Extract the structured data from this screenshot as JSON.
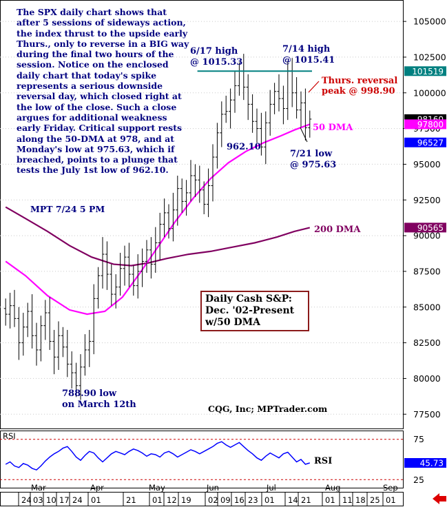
{
  "commentary": "The SPX daily chart shows that after 5 sessions of sideways action, the index thrust to the upside early Thurs., only to reverse in a BIG way during the final two hours of the session. Notice on the enclosed daily chart that today's spike represents a serious downside reversal day, which closed right at the low of the close. Such a close argues for additional weakness early Friday. Critical support rests along the 50-DMA at 978, and at Monday's low at 975.63, which if breached, points to a plunge that tests the July 1st low of 962.10.",
  "signature": "MPT  7/24  5 PM",
  "box": {
    "line1": "Daily Cash S&P:",
    "line2": "Dec. '02-Present",
    "line3": "w/50 DMA"
  },
  "credit": "CQG, Inc; MPTrader.com",
  "colors": {
    "price": "#000000",
    "dma50": "#ff00ff",
    "dma200": "#800060",
    "resistance": "#008080",
    "annotation": "#000080",
    "reversal": "#cc0000",
    "rsi": "#0000ff",
    "rsi_band": "#cc0000",
    "boxborder": "#8b1a1a",
    "tag_dark": "#000000",
    "tag_blue": "#0000ff",
    "tag_teal": "#008080",
    "tag_purple": "#800060"
  },
  "chart_data": {
    "type": "ohlc",
    "title": "Daily Cash S&P: Dec. '02-Present w/50 DMA",
    "price_axis": {
      "min": 76500,
      "max": 106500,
      "ticks": [
        77500,
        80000,
        82500,
        85000,
        87500,
        90000,
        92500,
        95000,
        97500,
        100000,
        102500,
        105000
      ]
    },
    "price_tags": [
      {
        "value": 101519,
        "label": "101519",
        "color_key": "tag_teal"
      },
      {
        "value": 98160,
        "label": "98160",
        "color_key": "tag_dark"
      },
      {
        "value": 97800,
        "label": "97800",
        "color_key": "dma50"
      },
      {
        "value": 96527,
        "label": "96527",
        "color_key": "tag_blue"
      },
      {
        "value": 90565,
        "label": "90565",
        "color_key": "tag_purple"
      }
    ],
    "x_axis": {
      "tick_labels": [
        "24",
        "03",
        "10",
        "17",
        "24",
        "01",
        "21",
        "01",
        "12",
        "19",
        "02",
        "09",
        "16",
        "23",
        "01",
        "14",
        "21",
        "01",
        "11",
        "18",
        "25",
        "01"
      ],
      "month_labels": [
        "Mar",
        "Apr",
        "May",
        "Jun",
        "Jul",
        "Aug",
        "Sep"
      ],
      "range": [
        0,
        140
      ]
    },
    "series": [
      {
        "name": "close",
        "values": [
          {
            "x": 1,
            "y": 84500
          },
          {
            "x": 3,
            "y": 85100
          },
          {
            "x": 5,
            "y": 84200
          },
          {
            "x": 7,
            "y": 82500
          },
          {
            "x": 9,
            "y": 83600
          },
          {
            "x": 11,
            "y": 84700
          },
          {
            "x": 13,
            "y": 83000
          },
          {
            "x": 15,
            "y": 82000
          },
          {
            "x": 17,
            "y": 83700
          },
          {
            "x": 19,
            "y": 84600
          },
          {
            "x": 21,
            "y": 82600
          },
          {
            "x": 23,
            "y": 81500
          },
          {
            "x": 25,
            "y": 83000
          },
          {
            "x": 27,
            "y": 82200
          },
          {
            "x": 29,
            "y": 81000
          },
          {
            "x": 31,
            "y": 80400
          },
          {
            "x": 33,
            "y": 79500
          },
          {
            "x": 35,
            "y": 80800
          },
          {
            "x": 37,
            "y": 82000
          },
          {
            "x": 39,
            "y": 82600
          },
          {
            "x": 41,
            "y": 85600
          },
          {
            "x": 43,
            "y": 87200
          },
          {
            "x": 45,
            "y": 88700
          },
          {
            "x": 47,
            "y": 87300
          },
          {
            "x": 49,
            "y": 85900
          },
          {
            "x": 51,
            "y": 86400
          },
          {
            "x": 53,
            "y": 87700
          },
          {
            "x": 55,
            "y": 88500
          },
          {
            "x": 57,
            "y": 87300
          },
          {
            "x": 59,
            "y": 86500
          },
          {
            "x": 61,
            "y": 87500
          },
          {
            "x": 63,
            "y": 88200
          },
          {
            "x": 65,
            "y": 89000
          },
          {
            "x": 67,
            "y": 88000
          },
          {
            "x": 69,
            "y": 89500
          },
          {
            "x": 71,
            "y": 90800
          },
          {
            "x": 73,
            "y": 91600
          },
          {
            "x": 75,
            "y": 90500
          },
          {
            "x": 77,
            "y": 91800
          },
          {
            "x": 79,
            "y": 93300
          },
          {
            "x": 81,
            "y": 92400
          },
          {
            "x": 83,
            "y": 93000
          },
          {
            "x": 85,
            "y": 94200
          },
          {
            "x": 87,
            "y": 93900
          },
          {
            "x": 89,
            "y": 93200
          },
          {
            "x": 91,
            "y": 92200
          },
          {
            "x": 93,
            "y": 93500
          },
          {
            "x": 95,
            "y": 95500
          },
          {
            "x": 97,
            "y": 97200
          },
          {
            "x": 99,
            "y": 98500
          },
          {
            "x": 101,
            "y": 98700
          },
          {
            "x": 103,
            "y": 99500
          },
          {
            "x": 105,
            "y": 100500
          },
          {
            "x": 107,
            "y": 101533
          },
          {
            "x": 109,
            "y": 100400
          },
          {
            "x": 111,
            "y": 99200
          },
          {
            "x": 113,
            "y": 98000
          },
          {
            "x": 115,
            "y": 97500
          },
          {
            "x": 117,
            "y": 96210
          },
          {
            "x": 119,
            "y": 97900
          },
          {
            "x": 121,
            "y": 99200
          },
          {
            "x": 123,
            "y": 100100
          },
          {
            "x": 125,
            "y": 99600
          },
          {
            "x": 127,
            "y": 98900
          },
          {
            "x": 129,
            "y": 101541
          },
          {
            "x": 131,
            "y": 100000
          },
          {
            "x": 133,
            "y": 98800
          },
          {
            "x": 135,
            "y": 99300
          },
          {
            "x": 137,
            "y": 97563
          },
          {
            "x": 139,
            "y": 98160
          }
        ]
      },
      {
        "name": "50 DMA",
        "values": [
          {
            "x": 1,
            "y": 88200
          },
          {
            "x": 10,
            "y": 87200
          },
          {
            "x": 20,
            "y": 85800
          },
          {
            "x": 30,
            "y": 84800
          },
          {
            "x": 38,
            "y": 84500
          },
          {
            "x": 46,
            "y": 84700
          },
          {
            "x": 54,
            "y": 85700
          },
          {
            "x": 62,
            "y": 87400
          },
          {
            "x": 70,
            "y": 89200
          },
          {
            "x": 78,
            "y": 91000
          },
          {
            "x": 86,
            "y": 92600
          },
          {
            "x": 94,
            "y": 94000
          },
          {
            "x": 102,
            "y": 95100
          },
          {
            "x": 110,
            "y": 95900
          },
          {
            "x": 118,
            "y": 96500
          },
          {
            "x": 126,
            "y": 97000
          },
          {
            "x": 132,
            "y": 97400
          },
          {
            "x": 139,
            "y": 97800
          }
        ]
      },
      {
        "name": "200 DMA",
        "values": [
          {
            "x": 1,
            "y": 92000
          },
          {
            "x": 10,
            "y": 91200
          },
          {
            "x": 20,
            "y": 90300
          },
          {
            "x": 30,
            "y": 89300
          },
          {
            "x": 40,
            "y": 88500
          },
          {
            "x": 50,
            "y": 88000
          },
          {
            "x": 58,
            "y": 87900
          },
          {
            "x": 66,
            "y": 88100
          },
          {
            "x": 74,
            "y": 88400
          },
          {
            "x": 84,
            "y": 88700
          },
          {
            "x": 94,
            "y": 88900
          },
          {
            "x": 104,
            "y": 89200
          },
          {
            "x": 114,
            "y": 89500
          },
          {
            "x": 124,
            "y": 89900
          },
          {
            "x": 132,
            "y": 90300
          },
          {
            "x": 139,
            "y": 90565
          }
        ]
      }
    ],
    "resistance": {
      "y": 101519,
      "x_start": 88,
      "x_end": 140
    },
    "annotations": [
      {
        "text": "6/17 high",
        "color_key": "annotation"
      },
      {
        "text": "@ 1015.33",
        "color_key": "annotation"
      },
      {
        "text": "7/14 high",
        "color_key": "annotation"
      },
      {
        "text": "@ 1015.41",
        "color_key": "annotation"
      },
      {
        "text": "Thurs. reversal",
        "color_key": "reversal"
      },
      {
        "text": "peak @ 998.90",
        "color_key": "reversal"
      },
      {
        "text": "50 DMA",
        "color_key": "dma50"
      },
      {
        "text": "962.10",
        "color_key": "annotation"
      },
      {
        "text": "7/21 low",
        "color_key": "annotation"
      },
      {
        "text": "@ 975.63",
        "color_key": "annotation"
      },
      {
        "text": "200 DMA",
        "color_key": "dma200"
      },
      {
        "text": "788.90 low",
        "color_key": "annotation"
      },
      {
        "text": "on March 12th",
        "color_key": "annotation"
      }
    ],
    "rsi": {
      "label": "RSI",
      "panel_label": "RSI",
      "axis": {
        "min": 15,
        "max": 85,
        "ticks": [
          25,
          75
        ],
        "tick_labels": [
          "25",
          "75"
        ]
      },
      "bands": [
        25,
        75
      ],
      "last": 45.73,
      "last_label": "45.73",
      "partial_label": "5",
      "values": [
        {
          "x": 1,
          "y": 44
        },
        {
          "x": 3,
          "y": 47
        },
        {
          "x": 5,
          "y": 42
        },
        {
          "x": 7,
          "y": 40
        },
        {
          "x": 9,
          "y": 45
        },
        {
          "x": 11,
          "y": 43
        },
        {
          "x": 13,
          "y": 39
        },
        {
          "x": 15,
          "y": 37
        },
        {
          "x": 17,
          "y": 42
        },
        {
          "x": 19,
          "y": 48
        },
        {
          "x": 21,
          "y": 53
        },
        {
          "x": 23,
          "y": 57
        },
        {
          "x": 25,
          "y": 60
        },
        {
          "x": 27,
          "y": 64
        },
        {
          "x": 29,
          "y": 66
        },
        {
          "x": 31,
          "y": 60
        },
        {
          "x": 33,
          "y": 53
        },
        {
          "x": 35,
          "y": 49
        },
        {
          "x": 37,
          "y": 55
        },
        {
          "x": 39,
          "y": 60
        },
        {
          "x": 41,
          "y": 58
        },
        {
          "x": 43,
          "y": 52
        },
        {
          "x": 45,
          "y": 47
        },
        {
          "x": 47,
          "y": 52
        },
        {
          "x": 49,
          "y": 57
        },
        {
          "x": 51,
          "y": 60
        },
        {
          "x": 53,
          "y": 58
        },
        {
          "x": 55,
          "y": 56
        },
        {
          "x": 57,
          "y": 60
        },
        {
          "x": 59,
          "y": 63
        },
        {
          "x": 61,
          "y": 61
        },
        {
          "x": 63,
          "y": 58
        },
        {
          "x": 65,
          "y": 54
        },
        {
          "x": 67,
          "y": 57
        },
        {
          "x": 69,
          "y": 56
        },
        {
          "x": 71,
          "y": 53
        },
        {
          "x": 73,
          "y": 58
        },
        {
          "x": 75,
          "y": 60
        },
        {
          "x": 77,
          "y": 57
        },
        {
          "x": 79,
          "y": 53
        },
        {
          "x": 81,
          "y": 56
        },
        {
          "x": 83,
          "y": 59
        },
        {
          "x": 85,
          "y": 62
        },
        {
          "x": 87,
          "y": 60
        },
        {
          "x": 89,
          "y": 57
        },
        {
          "x": 91,
          "y": 60
        },
        {
          "x": 93,
          "y": 63
        },
        {
          "x": 95,
          "y": 66
        },
        {
          "x": 97,
          "y": 70
        },
        {
          "x": 99,
          "y": 72
        },
        {
          "x": 101,
          "y": 68
        },
        {
          "x": 103,
          "y": 65
        },
        {
          "x": 105,
          "y": 68
        },
        {
          "x": 107,
          "y": 71
        },
        {
          "x": 109,
          "y": 66
        },
        {
          "x": 111,
          "y": 61
        },
        {
          "x": 113,
          "y": 57
        },
        {
          "x": 115,
          "y": 52
        },
        {
          "x": 117,
          "y": 49
        },
        {
          "x": 119,
          "y": 54
        },
        {
          "x": 121,
          "y": 58
        },
        {
          "x": 123,
          "y": 55
        },
        {
          "x": 125,
          "y": 52
        },
        {
          "x": 127,
          "y": 57
        },
        {
          "x": 129,
          "y": 59
        },
        {
          "x": 131,
          "y": 53
        },
        {
          "x": 133,
          "y": 47
        },
        {
          "x": 135,
          "y": 50
        },
        {
          "x": 137,
          "y": 44
        },
        {
          "x": 139,
          "y": 45.73
        }
      ]
    }
  }
}
